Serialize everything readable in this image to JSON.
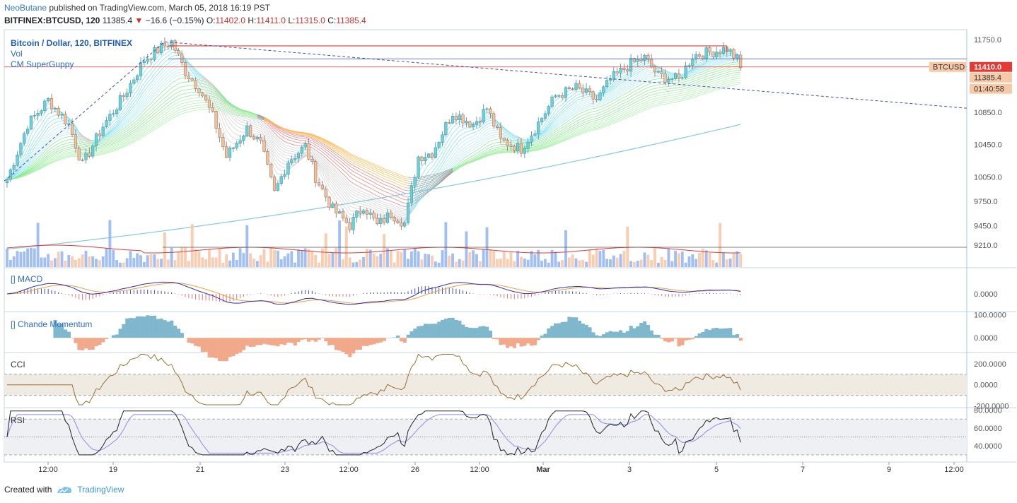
{
  "header": {
    "author": "NeoButane",
    "published_text": "published on TradingView.com, March 05, 2018 16:19 PST",
    "symbol_line": "BITFINEX:BTCUSD, 120",
    "last": "11385.4",
    "change": "−16.6 (−0.15%)",
    "o_label": "O:",
    "o_value": "11402.0",
    "h_label": "H:",
    "h_value": "11411.0",
    "l_label": "L:",
    "l_value": "11315.0",
    "c_label": "C:",
    "c_value": "11385.4"
  },
  "footer": {
    "created_with": "Created with",
    "brand": "TradingView"
  },
  "colors": {
    "up": "#6ad1dc",
    "down": "#f4c19a",
    "accent_red": "#e53935",
    "accent_blue": "#3f51b5",
    "axis": "#a9c4e4"
  },
  "chart_data": [
    {
      "type": "candlestick",
      "legend": [
        "Bitcoin / Dollar, 120, BITFINEX",
        "Vol",
        "CM SuperGuppy"
      ],
      "y_ticks": [
        "11750.0",
        "10850.0",
        "10450.0",
        "10050.0",
        "9750.0",
        "9450.0",
        "9210.0"
      ],
      "y_tick_values": [
        11750,
        10850,
        10450,
        10050,
        9750,
        9450,
        9210
      ],
      "ylim": [
        9130,
        11870
      ],
      "x_ticks": [
        "12:00",
        "19",
        "21",
        "23",
        "12:00",
        "26",
        "12:00",
        "Mar",
        "3",
        "5",
        "7",
        "9",
        "12:00"
      ],
      "price_labels": [
        {
          "text": "BTCUSD",
          "value": 11410
        },
        {
          "text": "11410.0",
          "value": 11410
        },
        {
          "text": "11385.4",
          "value": 11385.4
        },
        {
          "text": "01:40:58",
          "value": 11310
        }
      ],
      "anchors": [
        {
          "i": 0,
          "v": 10020
        },
        {
          "i": 6,
          "v": 10700
        },
        {
          "i": 12,
          "v": 11000
        },
        {
          "i": 18,
          "v": 10700
        },
        {
          "i": 22,
          "v": 10200
        },
        {
          "i": 28,
          "v": 10680
        },
        {
          "i": 34,
          "v": 11050
        },
        {
          "i": 40,
          "v": 11500
        },
        {
          "i": 45,
          "v": 11650
        },
        {
          "i": 48,
          "v": 11720
        },
        {
          "i": 52,
          "v": 11350
        },
        {
          "i": 56,
          "v": 11150
        },
        {
          "i": 60,
          "v": 10800
        },
        {
          "i": 64,
          "v": 10300
        },
        {
          "i": 70,
          "v": 10650
        },
        {
          "i": 74,
          "v": 10450
        },
        {
          "i": 78,
          "v": 9850
        },
        {
          "i": 82,
          "v": 10250
        },
        {
          "i": 87,
          "v": 10430
        },
        {
          "i": 90,
          "v": 10050
        },
        {
          "i": 95,
          "v": 9650
        },
        {
          "i": 100,
          "v": 9450
        },
        {
          "i": 104,
          "v": 9700
        },
        {
          "i": 108,
          "v": 9450
        },
        {
          "i": 112,
          "v": 9600
        },
        {
          "i": 116,
          "v": 9480
        },
        {
          "i": 120,
          "v": 10300
        },
        {
          "i": 124,
          "v": 10350
        },
        {
          "i": 130,
          "v": 10850
        },
        {
          "i": 136,
          "v": 10700
        },
        {
          "i": 140,
          "v": 10900
        },
        {
          "i": 144,
          "v": 10500
        },
        {
          "i": 150,
          "v": 10400
        },
        {
          "i": 154,
          "v": 10650
        },
        {
          "i": 160,
          "v": 11050
        },
        {
          "i": 166,
          "v": 11150
        },
        {
          "i": 172,
          "v": 11000
        },
        {
          "i": 176,
          "v": 11250
        },
        {
          "i": 182,
          "v": 11450
        },
        {
          "i": 186,
          "v": 11520
        },
        {
          "i": 190,
          "v": 11300
        },
        {
          "i": 196,
          "v": 11250
        },
        {
          "i": 200,
          "v": 11550
        },
        {
          "i": 206,
          "v": 11600
        },
        {
          "i": 210,
          "v": 11640
        },
        {
          "i": 213,
          "v": 11500
        },
        {
          "i": 214,
          "v": 11385
        }
      ],
      "bars": 215,
      "resistance_level": 11670,
      "range_high": 11510,
      "range_low": 11410,
      "support_level": 9250,
      "trendline_start": {
        "i": 46,
        "v": 11720
      },
      "trendline_end_value": 10900,
      "ma_start": 9160,
      "ma_end": 10700
    },
    {
      "type": "bar",
      "name": "Volume"
    },
    {
      "type": "line",
      "legend": "[] MACD",
      "y_ticks": [
        "0.0000"
      ],
      "y_tick_values": [
        0
      ],
      "ylim": [
        -1,
        1
      ]
    },
    {
      "type": "area",
      "legend": "[] Chande Momentum",
      "y_ticks": [
        "100.0000",
        "0.0000"
      ],
      "y_tick_values": [
        100,
        0
      ],
      "ylim": [
        -60,
        110
      ]
    },
    {
      "type": "line",
      "legend": "CCI",
      "y_ticks": [
        "200.0000",
        "0.0000",
        "-200.0000"
      ],
      "y_tick_values": [
        200,
        0,
        -200
      ],
      "ylim": [
        -210,
        300
      ],
      "band": [
        -100,
        100
      ]
    },
    {
      "type": "line",
      "legend": "RSI",
      "y_ticks": [
        "80.0000",
        "60.0000",
        "40.0000"
      ],
      "y_tick_values": [
        80,
        60,
        40
      ],
      "ylim": [
        22,
        82
      ],
      "band": [
        30,
        70
      ],
      "mid": 50
    }
  ]
}
